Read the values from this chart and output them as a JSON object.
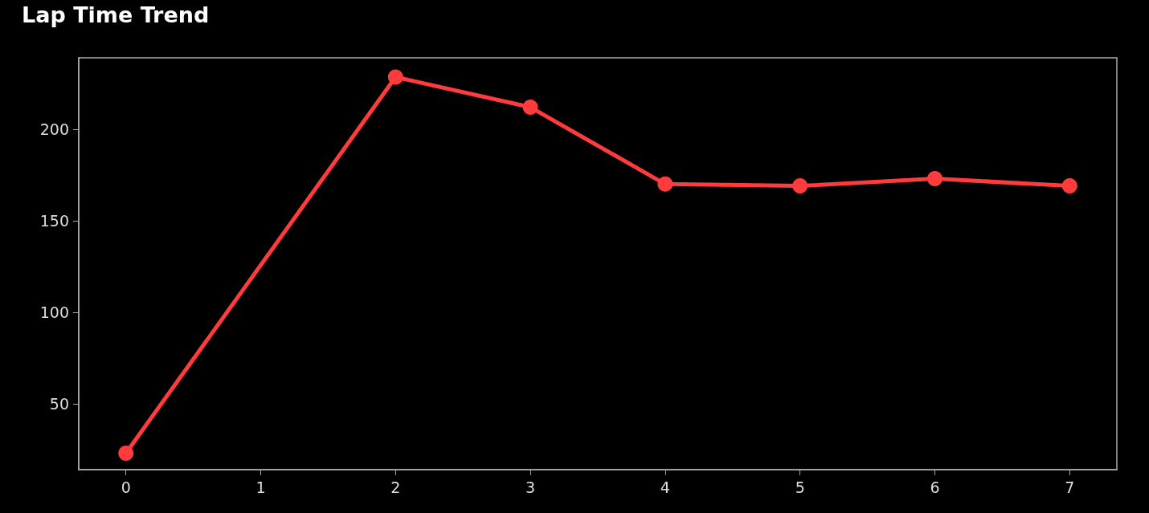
{
  "chart_data": {
    "type": "line",
    "title": "Lap Time Trend",
    "series": [
      {
        "color": "#ff3b3b",
        "x": [
          0,
          2,
          3,
          4,
          5,
          6,
          7
        ],
        "values": [
          23,
          228.5,
          212,
          170,
          169,
          173,
          169
        ]
      }
    ],
    "xlim": [
      -0.35,
      7.35
    ],
    "xticks": [
      0,
      1,
      2,
      3,
      4,
      5,
      6,
      7
    ],
    "ylim": [
      14,
      239
    ],
    "yticks": [
      50,
      100,
      150,
      200
    ],
    "grid": false,
    "marker": "circle",
    "line_style": "solid"
  }
}
